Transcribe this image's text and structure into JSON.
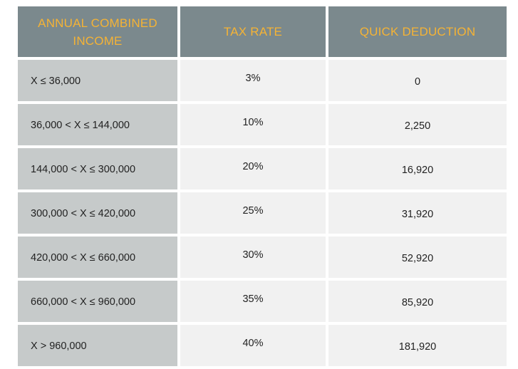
{
  "table": {
    "headers": [
      "ANNUAL COMBINED INCOME",
      "TAX RATE",
      "QUICK DEDUCTION"
    ],
    "rows": [
      {
        "income": "X ≤ 36,000",
        "rate": "3%",
        "deduction": "0"
      },
      {
        "income": "36,000 < X ≤ 144,000",
        "rate": "10%",
        "deduction": "2,250"
      },
      {
        "income": "144,000 < X ≤ 300,000",
        "rate": "20%",
        "deduction": "16,920"
      },
      {
        "income": "300,000 < X ≤ 420,000",
        "rate": "25%",
        "deduction": "31,920"
      },
      {
        "income": "420,000 < X ≤ 660,000",
        "rate": "30%",
        "deduction": "52,920"
      },
      {
        "income": "660,000 < X ≤ 960,000",
        "rate": "35%",
        "deduction": "85,920"
      },
      {
        "income": "X > 960,000",
        "rate": "40%",
        "deduction": "181,920"
      }
    ]
  },
  "colors": {
    "header_bg": "#7b898d",
    "header_text": "#f5b335",
    "income_col_bg": "#c6caca",
    "cell_bg": "#f1f1f1",
    "body_text": "#222222"
  }
}
